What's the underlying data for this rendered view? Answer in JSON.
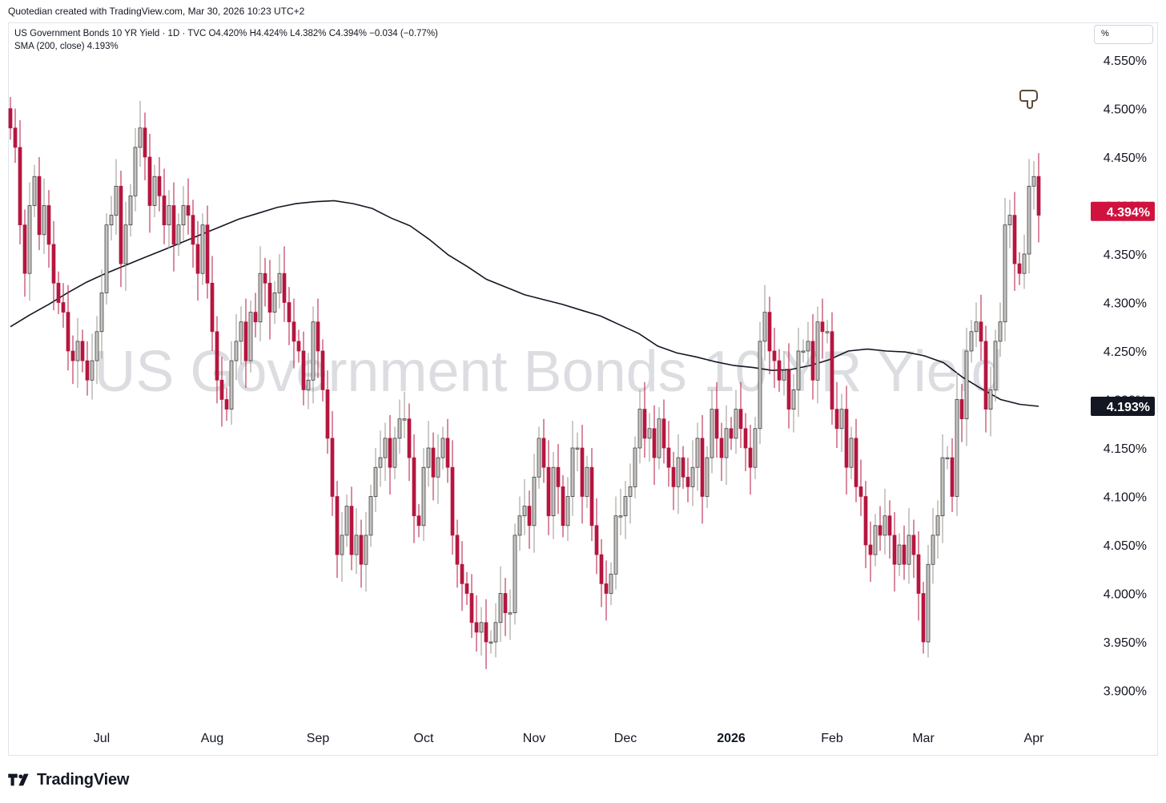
{
  "header": {
    "credit": "Quotedian created with TradingView.com, Mar 30, 2026 10:23 UTC+2"
  },
  "legend": {
    "line1": "US Government Bonds 10 YR Yield · 1D · TVC  O4.420%  H4.424%  L4.382%  C4.394%  −0.034 (−0.77%)",
    "line2": "SMA (200, close)  4.193%"
  },
  "unit_label": "%",
  "watermark": "US Government Bonds 10 YR Yield",
  "price_badges": {
    "last": "4.394%",
    "sma": "4.193%"
  },
  "footer": {
    "brand": "TradingView"
  },
  "colors": {
    "up": "#c8c3bc",
    "down": "#b5163f",
    "wick_up": "#9a948c",
    "wick_down": "#b5163f",
    "sma": "#131722",
    "badge_last": "#d0123f",
    "badge_sma": "#131722"
  },
  "chart_data": {
    "type": "candlestick",
    "series_name": "US Government Bonds 10 YR Yield",
    "timeframe": "1D",
    "yunit": "%",
    "ylim": [
      3.88,
      4.575
    ],
    "yticks": [
      "4.550%",
      "4.500%",
      "4.450%",
      "4.400%",
      "4.350%",
      "4.300%",
      "4.250%",
      "4.200%",
      "4.150%",
      "4.100%",
      "4.050%",
      "4.000%",
      "3.950%",
      "3.900%"
    ],
    "ytick_values": [
      4.55,
      4.5,
      4.45,
      4.4,
      4.35,
      4.3,
      4.25,
      4.2,
      4.15,
      4.1,
      4.05,
      4.0,
      3.95,
      3.9
    ],
    "xticks": [
      {
        "label": "Jul",
        "index": 19,
        "bold": false
      },
      {
        "label": "Aug",
        "index": 42,
        "bold": false
      },
      {
        "label": "Sep",
        "index": 64,
        "bold": false
      },
      {
        "label": "Oct",
        "index": 86,
        "bold": false
      },
      {
        "label": "Nov",
        "index": 109,
        "bold": false
      },
      {
        "label": "Dec",
        "index": 128,
        "bold": false
      },
      {
        "label": "2026",
        "index": 150,
        "bold": true
      },
      {
        "label": "Feb",
        "index": 171,
        "bold": false
      },
      {
        "label": "Mar",
        "index": 190,
        "bold": false
      },
      {
        "label": "Apr",
        "index": 213,
        "bold": false
      }
    ],
    "closes": [
      4.48,
      4.46,
      4.38,
      4.33,
      4.4,
      4.43,
      4.37,
      4.4,
      4.36,
      4.32,
      4.3,
      4.29,
      4.25,
      4.24,
      4.26,
      4.24,
      4.22,
      4.24,
      4.27,
      4.31,
      4.38,
      4.39,
      4.42,
      4.34,
      4.38,
      4.41,
      4.46,
      4.48,
      4.45,
      4.4,
      4.43,
      4.41,
      4.38,
      4.4,
      4.36,
      4.38,
      4.4,
      4.39,
      4.36,
      4.33,
      4.38,
      4.32,
      4.27,
      4.22,
      4.2,
      4.19,
      4.24,
      4.26,
      4.28,
      4.24,
      4.29,
      4.28,
      4.33,
      4.32,
      4.29,
      4.31,
      4.33,
      4.3,
      4.28,
      4.26,
      4.25,
      4.21,
      4.22,
      4.28,
      4.25,
      4.21,
      4.16,
      4.1,
      4.04,
      4.06,
      4.09,
      4.04,
      4.06,
      4.03,
      4.06,
      4.1,
      4.13,
      4.14,
      4.16,
      4.13,
      4.16,
      4.18,
      4.18,
      4.14,
      4.08,
      4.07,
      4.13,
      4.15,
      4.12,
      4.14,
      4.16,
      4.13,
      4.06,
      4.03,
      4.01,
      4.0,
      3.97,
      3.96,
      3.97,
      3.95,
      3.95,
      3.97,
      4.0,
      3.98,
      3.98,
      4.06,
      4.08,
      4.09,
      4.07,
      4.12,
      4.16,
      4.13,
      4.08,
      4.13,
      4.11,
      4.07,
      4.1,
      4.15,
      4.15,
      4.1,
      4.13,
      4.07,
      4.04,
      4.01,
      4.0,
      4.02,
      4.08,
      4.08,
      4.1,
      4.11,
      4.15,
      4.19,
      4.16,
      4.17,
      4.14,
      4.18,
      4.15,
      4.13,
      4.11,
      4.14,
      4.12,
      4.11,
      4.13,
      4.16,
      4.1,
      4.14,
      4.19,
      4.16,
      4.14,
      4.17,
      4.16,
      4.19,
      4.17,
      4.15,
      4.13,
      4.17,
      4.26,
      4.29,
      4.25,
      4.24,
      4.22,
      4.23,
      4.19,
      4.21,
      4.25,
      4.25,
      4.26,
      4.22,
      4.28,
      4.27,
      4.27,
      4.19,
      4.17,
      4.19,
      4.13,
      4.16,
      4.11,
      4.1,
      4.05,
      4.04,
      4.07,
      4.06,
      4.08,
      4.06,
      4.03,
      4.05,
      4.03,
      4.06,
      4.04,
      4.0,
      3.95,
      4.03,
      4.06,
      4.08,
      4.14,
      4.14,
      4.1,
      4.2,
      4.18,
      4.25,
      4.27,
      4.28,
      4.26,
      4.19,
      4.21,
      4.26,
      4.28,
      4.38,
      4.39,
      4.34,
      4.33,
      4.35,
      4.42,
      4.43,
      4.39
    ],
    "sma_200": [
      4.275,
      4.287,
      4.298,
      4.31,
      4.321,
      4.33,
      4.338,
      4.346,
      4.354,
      4.362,
      4.37,
      4.378,
      4.386,
      4.392,
      4.398,
      4.402,
      4.404,
      4.405,
      4.402,
      4.397,
      4.387,
      4.379,
      4.365,
      4.349,
      4.337,
      4.324,
      4.316,
      4.308,
      4.303,
      4.298,
      4.292,
      4.286,
      4.277,
      4.268,
      4.255,
      4.248,
      4.244,
      4.239,
      4.235,
      4.233,
      4.23,
      4.231,
      4.235,
      4.241,
      4.25,
      4.252,
      4.25,
      4.249,
      4.245,
      4.238,
      4.223,
      4.211,
      4.2,
      4.195,
      4.193
    ]
  }
}
